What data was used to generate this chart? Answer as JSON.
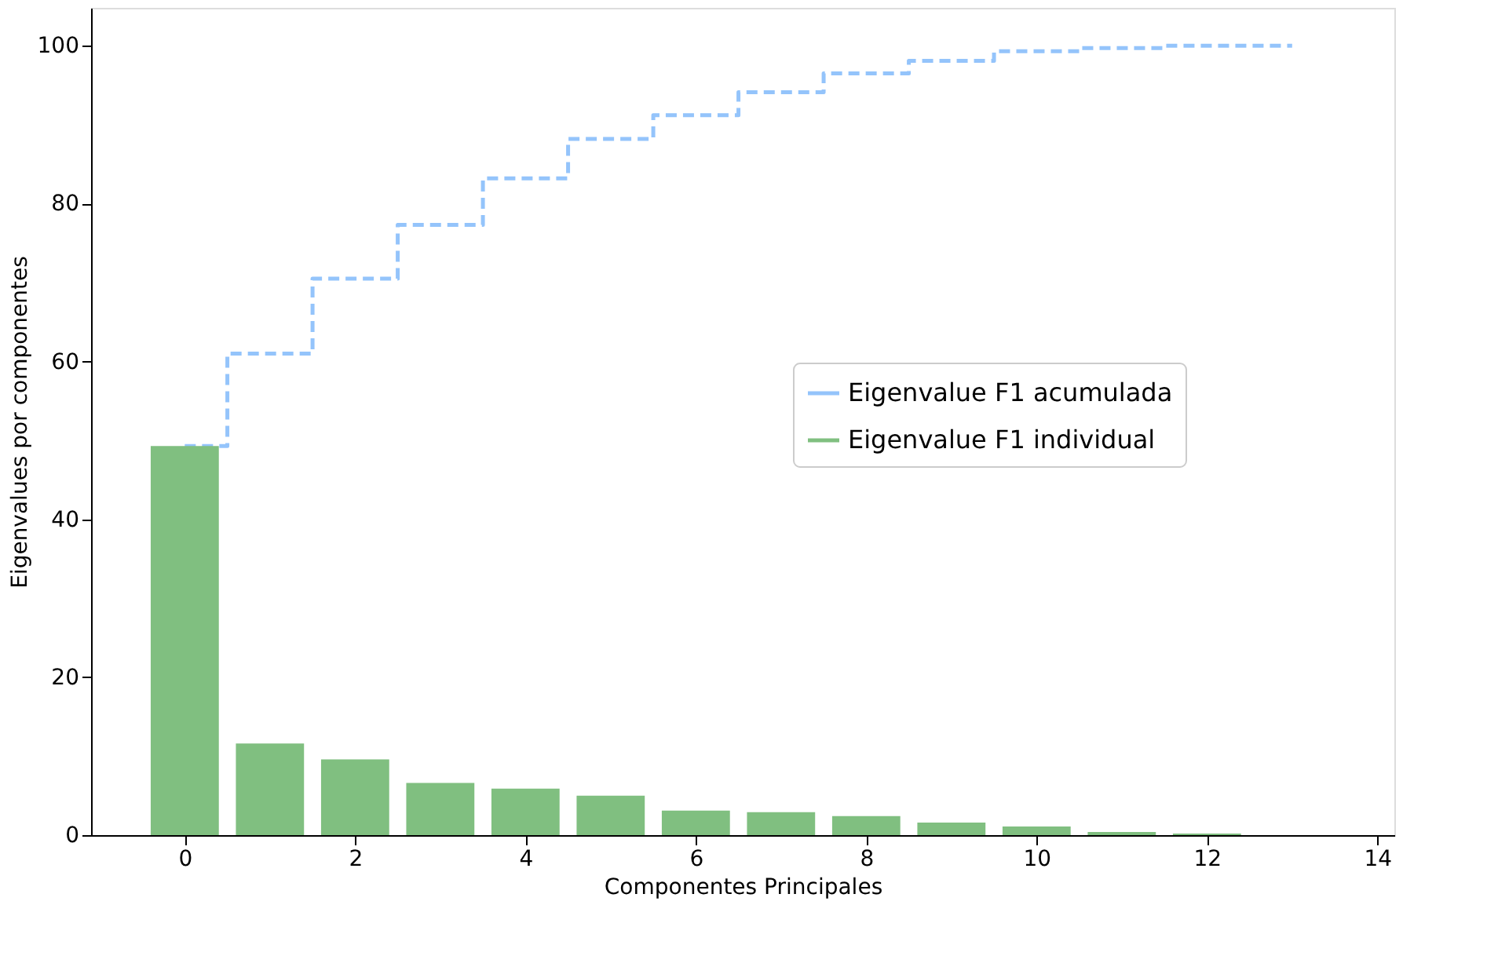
{
  "chart_data": {
    "type": "bar",
    "xlabel": "Componentes Principales",
    "ylabel": "Eigenvalues por componentes",
    "x": [
      0,
      1,
      2,
      3,
      4,
      5,
      6,
      7,
      8,
      9,
      10,
      11,
      12
    ],
    "series": [
      {
        "name": "Eigenvalue F1 acumulada",
        "type": "step",
        "color": "#94c4fb",
        "line_style": "dashed",
        "x": [
          0,
          1,
          2,
          3,
          4,
          5,
          6,
          7,
          8,
          9,
          10,
          11,
          12,
          13
        ],
        "values": [
          49.3,
          61.0,
          70.5,
          77.3,
          83.2,
          88.2,
          91.2,
          94.1,
          96.5,
          98.1,
          99.3,
          99.7,
          100,
          100
        ]
      },
      {
        "name": "Eigenvalue F1 individual",
        "color": "#80bf80",
        "values": [
          49.3,
          11.6,
          9.6,
          6.6,
          5.9,
          5.0,
          3.1,
          2.9,
          2.4,
          1.6,
          1.1,
          0.4,
          0.2
        ]
      }
    ],
    "xlim": [
      -1.1,
      14.2
    ],
    "xticks": [
      0,
      2,
      4,
      6,
      8,
      10,
      12,
      14
    ],
    "ylim": [
      0,
      104.8
    ],
    "yticks": [
      0,
      20,
      40,
      60,
      80,
      100
    ],
    "grid": false,
    "legend": "right"
  }
}
